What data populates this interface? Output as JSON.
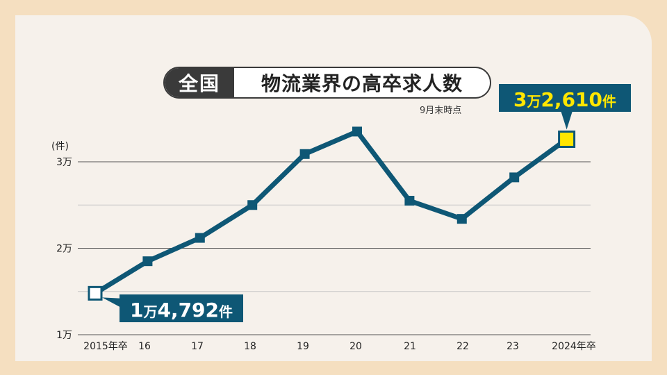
{
  "header": {
    "tag": "全国",
    "title": "物流業界の高卒求人数",
    "note": "9月末時点"
  },
  "chart_data": {
    "type": "line",
    "title": "物流業界の高卒求人数",
    "ylabel": "(件)",
    "categories": [
      "2015年卒",
      "16",
      "17",
      "18",
      "19",
      "20",
      "21",
      "22",
      "23",
      "2024年卒"
    ],
    "values": [
      14792,
      18500,
      21200,
      25000,
      30900,
      33500,
      25500,
      23400,
      28200,
      32610
    ],
    "ylim": [
      10000,
      30000
    ],
    "yticks": [
      {
        "value": 10000,
        "label": "1万"
      },
      {
        "value": 20000,
        "label": "2万"
      },
      {
        "value": 30000,
        "label": "3万"
      }
    ],
    "grid": true,
    "annotations": {
      "first": {
        "prefix": "1",
        "unit": "万",
        "rest": "4,792",
        "suffix": "件"
      },
      "last": {
        "prefix": "3",
        "unit": "万",
        "rest": "2,610",
        "suffix": "件"
      }
    },
    "colors": {
      "line": "#0e5775",
      "grid": "#555555",
      "minor_grid": "#c8c8c8",
      "highlight": "#ffe600"
    }
  }
}
